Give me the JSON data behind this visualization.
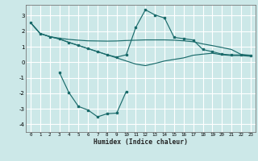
{
  "background_color": "#cce8e8",
  "grid_color": "#ffffff",
  "line_color": "#1a6b6b",
  "xlabel": "Humidex (Indice chaleur)",
  "xlim": [
    -0.5,
    23.5
  ],
  "ylim": [
    -4.5,
    3.7
  ],
  "yticks": [
    -4,
    -3,
    -2,
    -1,
    0,
    1,
    2,
    3
  ],
  "xticks": [
    0,
    1,
    2,
    3,
    4,
    5,
    6,
    7,
    8,
    9,
    10,
    11,
    12,
    13,
    14,
    15,
    16,
    17,
    18,
    19,
    20,
    21,
    22,
    23
  ],
  "s1_x": [
    0,
    1,
    2,
    3,
    4,
    5,
    6,
    7,
    8,
    9,
    10,
    11,
    12,
    13,
    14,
    15,
    16,
    17,
    18,
    19,
    20,
    21,
    22,
    23
  ],
  "s1_y": [
    2.55,
    1.85,
    1.65,
    1.55,
    1.47,
    1.42,
    1.38,
    1.37,
    1.36,
    1.37,
    1.4,
    1.42,
    1.44,
    1.44,
    1.44,
    1.42,
    1.38,
    1.32,
    1.18,
    1.07,
    0.95,
    0.82,
    0.5,
    0.45
  ],
  "s2_x": [
    0,
    1,
    2,
    3,
    4,
    5,
    6,
    7,
    8,
    9,
    10,
    11,
    12,
    13,
    14,
    15,
    16,
    17,
    18,
    19,
    20,
    21,
    22,
    23
  ],
  "s2_y": [
    2.55,
    1.85,
    1.65,
    1.5,
    1.28,
    1.08,
    0.88,
    0.68,
    0.48,
    0.33,
    0.48,
    2.25,
    3.38,
    3.05,
    2.85,
    1.6,
    1.52,
    1.43,
    0.82,
    0.68,
    0.52,
    0.47,
    0.47,
    0.43
  ],
  "s3_x": [
    0,
    1,
    2,
    3,
    4,
    5,
    6,
    7,
    8,
    9,
    10,
    11,
    12,
    13,
    14,
    15,
    16,
    17,
    18,
    19,
    20,
    21,
    22,
    23
  ],
  "s3_y": [
    2.55,
    1.85,
    1.65,
    1.5,
    1.28,
    1.08,
    0.88,
    0.68,
    0.48,
    0.28,
    0.08,
    -0.12,
    -0.22,
    -0.08,
    0.08,
    0.18,
    0.28,
    0.45,
    0.52,
    0.58,
    0.48,
    0.43,
    0.43,
    0.38
  ],
  "s4_x": [
    3,
    4,
    5,
    6,
    7,
    8,
    9,
    10
  ],
  "s4_y": [
    -0.65,
    -1.95,
    -2.85,
    -3.08,
    -3.52,
    -3.32,
    -3.28,
    -1.88
  ]
}
